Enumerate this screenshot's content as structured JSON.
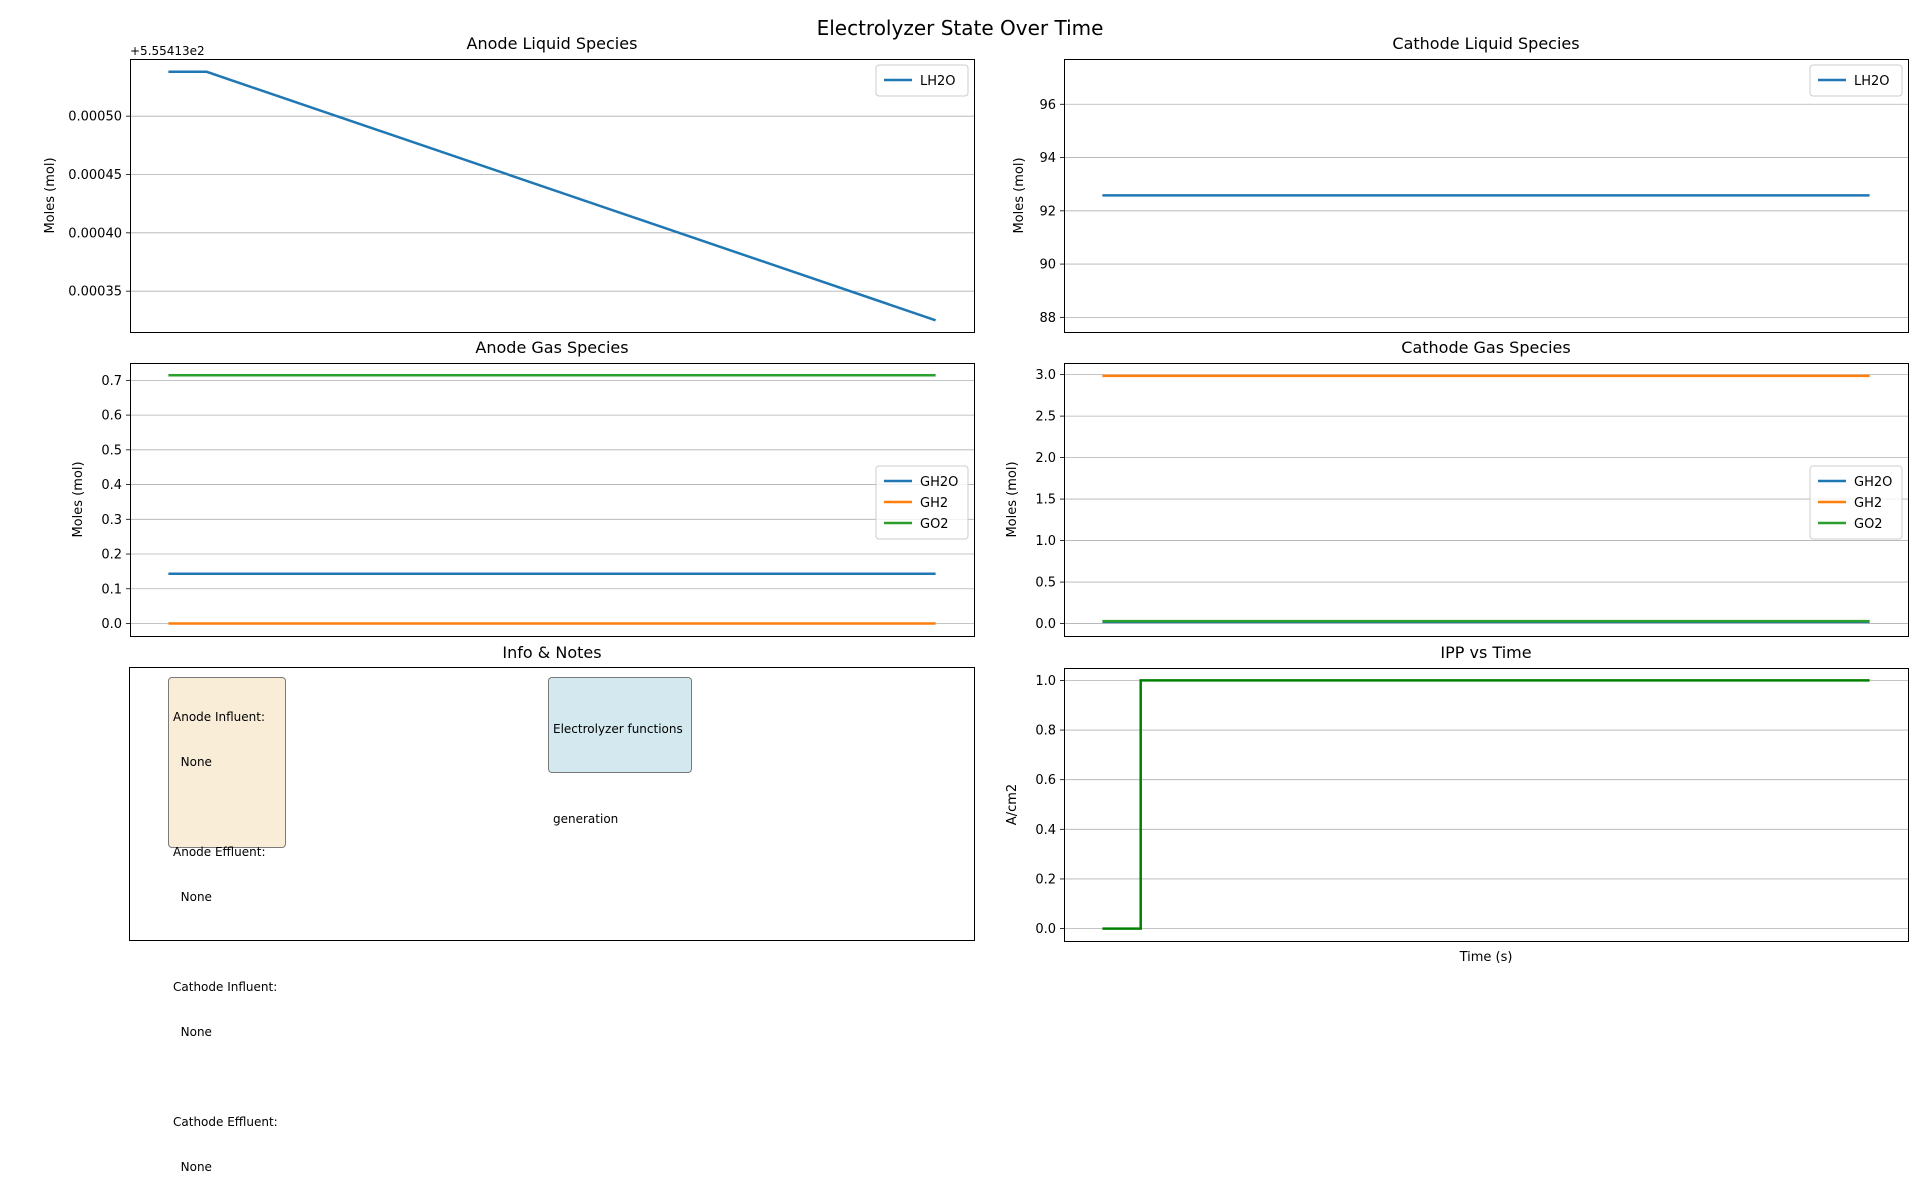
{
  "figure": {
    "title": "Electrolyzer State Over Time"
  },
  "colors": {
    "blue": "#1f77b4",
    "orange": "#ff7f0e",
    "green": "#2ca02c",
    "ipp_green": "#008000",
    "grid": "#b0b0b0"
  },
  "chart_data": [
    {
      "id": "anode_liquid",
      "type": "line",
      "title": "Anode Liquid Species",
      "ylabel": "Moles (mol)",
      "xlabel": "",
      "offset_label": "+5.55413e2",
      "ylim": [
        0.000315,
        0.000549
      ],
      "yticks": [
        0.00035,
        0.0004,
        0.00045,
        0.0005
      ],
      "ytick_labels": [
        "0.00035",
        "0.00040",
        "0.00045",
        "0.00050"
      ],
      "xlim": [
        -0.05,
        1.05
      ],
      "grid": "y",
      "legend": "upper right",
      "series": [
        {
          "name": "LH2O",
          "color": "#1f77b4",
          "x": [
            0,
            0.05,
            1.0
          ],
          "y": [
            0.000538,
            0.000538,
            0.000325
          ]
        }
      ]
    },
    {
      "id": "cathode_liquid",
      "type": "line",
      "title": "Cathode Liquid Species",
      "ylabel": "Moles (mol)",
      "xlabel": "",
      "ylim": [
        87.45,
        97.7
      ],
      "yticks": [
        88,
        90,
        92,
        94,
        96
      ],
      "ytick_labels": [
        "88",
        "90",
        "92",
        "94",
        "96"
      ],
      "xlim": [
        -0.05,
        1.05
      ],
      "grid": "y",
      "legend": "upper right",
      "series": [
        {
          "name": "LH2O",
          "color": "#1f77b4",
          "x": [
            0,
            1.0
          ],
          "y": [
            92.58,
            92.58
          ]
        }
      ]
    },
    {
      "id": "anode_gas",
      "type": "line",
      "title": "Anode Gas Species",
      "ylabel": "Moles (mol)",
      "xlabel": "",
      "ylim": [
        -0.036,
        0.75
      ],
      "yticks": [
        0.0,
        0.1,
        0.2,
        0.3,
        0.4,
        0.5,
        0.6,
        0.7
      ],
      "ytick_labels": [
        "0.0",
        "0.1",
        "0.2",
        "0.3",
        "0.4",
        "0.5",
        "0.6",
        "0.7"
      ],
      "xlim": [
        -0.05,
        1.05
      ],
      "grid": "y",
      "legend": "center right",
      "series": [
        {
          "name": "GH2O",
          "color": "#1f77b4",
          "x": [
            0,
            1.0
          ],
          "y": [
            0.143,
            0.143
          ]
        },
        {
          "name": "GH2",
          "color": "#ff7f0e",
          "x": [
            0,
            1.0
          ],
          "y": [
            0.0,
            0.0
          ]
        },
        {
          "name": "GO2",
          "color": "#2ca02c",
          "x": [
            0,
            1.0
          ],
          "y": [
            0.715,
            0.715
          ]
        }
      ]
    },
    {
      "id": "cathode_gas",
      "type": "line",
      "title": "Cathode Gas Species",
      "ylabel": "Moles (mol)",
      "xlabel": "",
      "ylim": [
        -0.15,
        3.14
      ],
      "yticks": [
        0.0,
        0.5,
        1.0,
        1.5,
        2.0,
        2.5,
        3.0
      ],
      "ytick_labels": [
        "0.0",
        "0.5",
        "1.0",
        "1.5",
        "2.0",
        "2.5",
        "3.0"
      ],
      "xlim": [
        -0.05,
        1.05
      ],
      "grid": "y",
      "legend": "center right",
      "series": [
        {
          "name": "GH2O",
          "color": "#1f77b4",
          "x": [
            0,
            1.0
          ],
          "y": [
            0.02,
            0.02
          ]
        },
        {
          "name": "GH2",
          "color": "#ff7f0e",
          "x": [
            0,
            1.0
          ],
          "y": [
            2.985,
            2.985
          ]
        },
        {
          "name": "GO2",
          "color": "#2ca02c",
          "x": [
            0,
            1.0
          ],
          "y": [
            0.03,
            0.03
          ]
        }
      ]
    },
    {
      "id": "ipp",
      "type": "line",
      "title": "IPP vs Time",
      "ylabel": "A/cm2",
      "xlabel": "Time (s)",
      "ylim": [
        -0.05,
        1.05
      ],
      "yticks": [
        0.0,
        0.2,
        0.4,
        0.6,
        0.8,
        1.0
      ],
      "ytick_labels": [
        "0.0",
        "0.2",
        "0.4",
        "0.6",
        "0.8",
        "1.0"
      ],
      "xlim": [
        -0.05,
        1.05
      ],
      "grid": "y",
      "legend": "none",
      "series": [
        {
          "name": "",
          "color": "#008000",
          "x": [
            0,
            0.05,
            0.05,
            1.0
          ],
          "y": [
            0,
            0,
            1.0,
            1.0
          ]
        }
      ]
    }
  ],
  "info": {
    "title": "Info & Notes",
    "flows": {
      "anode_influent_label": "Anode Influent:",
      "anode_influent_value": "  None",
      "anode_effluent_label": "Anode Effluent:",
      "anode_effluent_value": "  None",
      "cathode_influent_label": "Cathode Influent:",
      "cathode_influent_value": "  None",
      "cathode_effluent_label": "Cathode Effluent:",
      "cathode_effluent_value": "  None"
    },
    "functions": {
      "line1": "Electrolyzer functions",
      "line2": "generation"
    }
  }
}
